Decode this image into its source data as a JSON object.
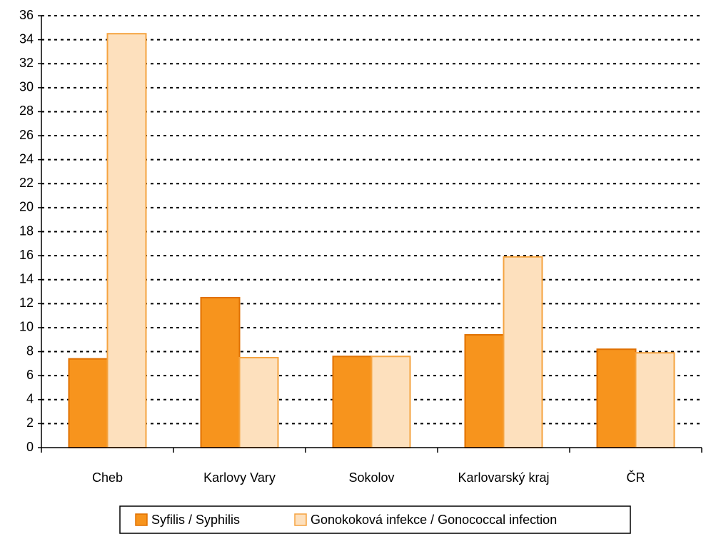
{
  "chart_data": {
    "type": "bar",
    "categories": [
      "Cheb",
      "Karlovy Vary",
      "Sokolov",
      "Karlovarský kraj",
      "ČR"
    ],
    "series": [
      {
        "name": "Syfilis / Syphilis",
        "color": "#f7941d",
        "values": [
          7.4,
          12.5,
          7.6,
          9.4,
          8.2
        ]
      },
      {
        "name": "Gonokoková infekce / Gonococcal infection",
        "color": "#fde0bd",
        "values": [
          34.5,
          7.5,
          7.6,
          15.9,
          7.9
        ]
      }
    ],
    "ylim": [
      0,
      36
    ],
    "yticks": [
      0,
      2,
      4,
      6,
      8,
      10,
      12,
      14,
      16,
      18,
      20,
      22,
      24,
      26,
      28,
      30,
      32,
      34,
      36
    ],
    "grid": true,
    "legend": "bottom"
  }
}
